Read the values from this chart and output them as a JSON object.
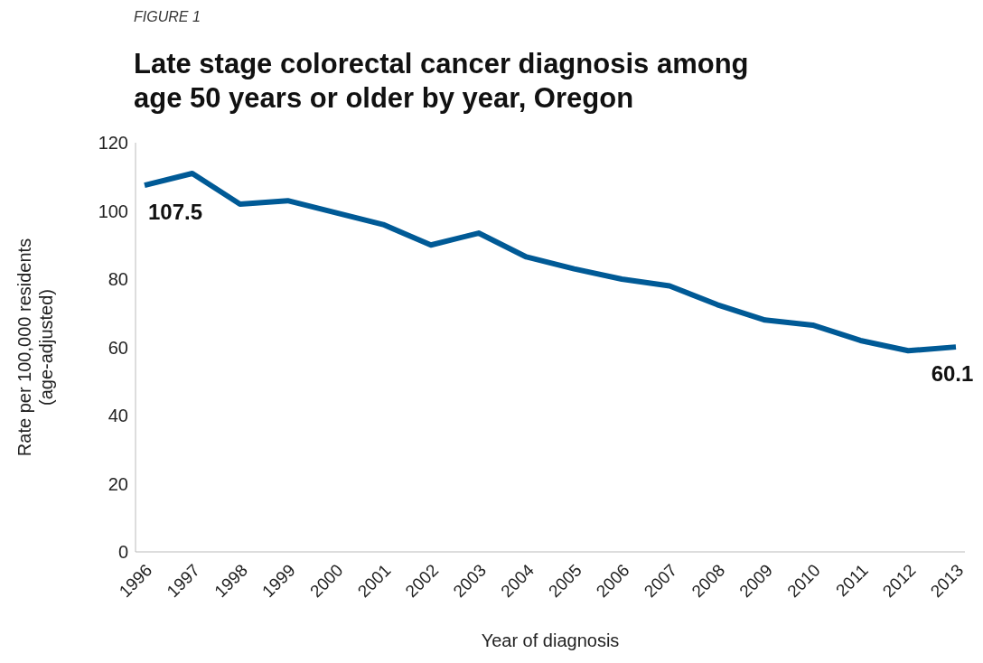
{
  "chart_data": {
    "type": "line",
    "title": "Late stage colorectal cancer diagnosis among\nage 50 years or older by year, Oregon",
    "xlabel": "Year of diagnosis",
    "ylabel": "Rate per 100,000 residents\n(age-adjusted)",
    "categories": [
      "1996",
      "1997",
      "1998",
      "1999",
      "2000",
      "2001",
      "2002",
      "2003",
      "2004",
      "2005",
      "2006",
      "2007",
      "2008",
      "2009",
      "2010",
      "2011",
      "2012",
      "2013"
    ],
    "series": [
      {
        "color": "#005a96",
        "values": [
          107.5,
          111,
          102,
          103,
          99.5,
          96,
          90,
          93.5,
          86.5,
          83,
          80,
          78,
          72.5,
          68,
          66.5,
          62,
          59,
          60.1
        ],
        "value_labels": [
          "107.5",
          null,
          null,
          null,
          null,
          null,
          null,
          null,
          null,
          null,
          null,
          null,
          null,
          null,
          null,
          null,
          null,
          "60.1"
        ]
      }
    ],
    "ylim": [
      0,
      120
    ],
    "yticks": [
      0,
      20,
      40,
      60,
      80,
      100,
      120
    ],
    "grid": false,
    "legend": false,
    "marker": "none",
    "line_style": "solid",
    "annotations": [
      "FIGURE 1"
    ]
  }
}
